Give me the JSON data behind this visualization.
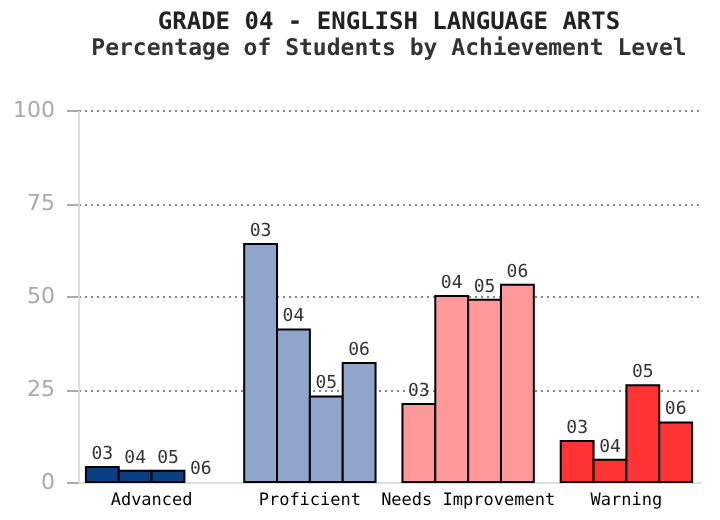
{
  "chart_data": {
    "type": "bar",
    "title": "GRADE 04 - ENGLISH LANGUAGE ARTS",
    "subtitle": "Percentage of Students by Achievement Level",
    "categories": [
      "Advanced",
      "Proficient",
      "Needs Improvement",
      "Warning"
    ],
    "series": [
      {
        "name": "03",
        "colors": [
          "#0a3f84",
          "#8fa5cc",
          "#ff9999",
          "#ff3333"
        ],
        "values": [
          4,
          64,
          21,
          11
        ]
      },
      {
        "name": "04",
        "colors": [
          "#0a3f84",
          "#8fa5cc",
          "#ff9999",
          "#ff3333"
        ],
        "values": [
          3,
          41,
          50,
          6
        ]
      },
      {
        "name": "05",
        "colors": [
          "#0a3f84",
          "#8fa5cc",
          "#ff9999",
          "#ff3333"
        ],
        "values": [
          3,
          23,
          49,
          26
        ]
      },
      {
        "name": "06",
        "colors": [
          "#0a3f84",
          "#8fa5cc",
          "#ff9999",
          "#ff3333"
        ],
        "values": [
          0,
          32,
          53,
          16
        ]
      }
    ],
    "ylim": [
      0,
      100
    ],
    "yticks": [
      0,
      25,
      50,
      75,
      100
    ],
    "grid": "y"
  }
}
